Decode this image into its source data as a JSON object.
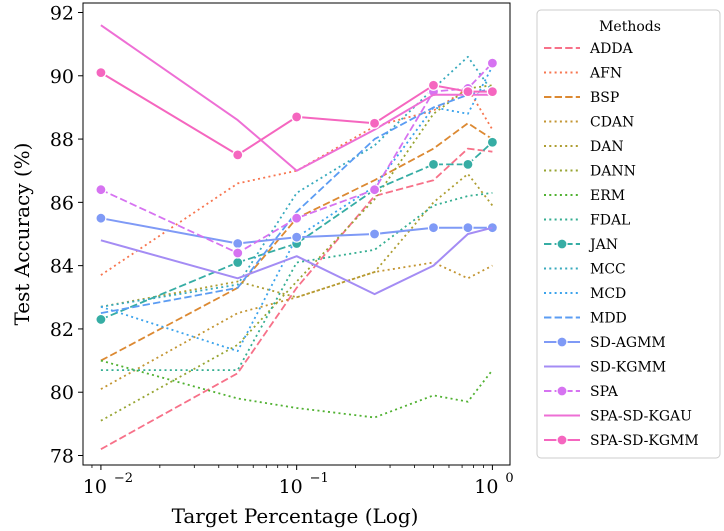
{
  "chart_data": {
    "type": "line",
    "xscale": "log",
    "xlabel": "Target Percentage (Log)",
    "ylabel": "Test Accuracy (%)",
    "xlim": [
      0.0081,
      1.23
    ],
    "ylim": [
      77.7,
      92.3
    ],
    "x": [
      0.01,
      0.05,
      0.1,
      0.25,
      0.5,
      0.75,
      1.0
    ],
    "xticks": [
      0.01,
      0.1,
      1.0
    ],
    "xtick_labels": [
      "10",
      "10",
      "10"
    ],
    "xtick_exponents": [
      "−2",
      "−1",
      "0"
    ],
    "yticks": [
      78,
      80,
      82,
      84,
      86,
      88,
      90,
      92
    ],
    "ytick_labels": [
      "78",
      "80",
      "82",
      "84",
      "86",
      "88",
      "90",
      "92"
    ],
    "grid": false,
    "legend": {
      "title": "Methods",
      "placement": "outside-right"
    },
    "series": [
      {
        "name": "ADDA",
        "color": "#f77189",
        "dash": "dashed",
        "marker": "none",
        "values": [
          78.2,
          80.6,
          83.3,
          86.2,
          86.7,
          87.7,
          87.6
        ]
      },
      {
        "name": "AFN",
        "color": "#f7754f",
        "dash": "dotted",
        "marker": "none",
        "values": [
          83.7,
          86.6,
          87.0,
          88.4,
          88.9,
          89.6,
          88.3
        ]
      },
      {
        "name": "BSP",
        "color": "#dc8932",
        "dash": "dashed",
        "marker": "none",
        "values": [
          81.0,
          83.3,
          85.5,
          86.7,
          87.7,
          88.5,
          88.0
        ]
      },
      {
        "name": "CDAN",
        "color": "#c39532",
        "dash": "dotted",
        "marker": "none",
        "values": [
          80.1,
          82.5,
          83.0,
          83.8,
          84.1,
          83.6,
          84.0
        ]
      },
      {
        "name": "DAN",
        "color": "#ae9d31",
        "dash": "dotted",
        "marker": "none",
        "values": [
          82.7,
          83.5,
          83.0,
          83.8,
          86.0,
          86.9,
          85.9
        ]
      },
      {
        "name": "DANN",
        "color": "#97a431",
        "dash": "dotted",
        "marker": "none",
        "values": [
          79.1,
          81.5,
          83.5,
          86.1,
          88.8,
          89.6,
          89.7
        ]
      },
      {
        "name": "ERM",
        "color": "#50b131",
        "dash": "dotted",
        "marker": "none",
        "values": [
          81.0,
          79.8,
          79.5,
          79.2,
          79.9,
          79.7,
          80.7
        ]
      },
      {
        "name": "FDAL",
        "color": "#34ae91",
        "dash": "dotted",
        "marker": "none",
        "values": [
          80.7,
          80.7,
          84.1,
          84.5,
          85.9,
          86.2,
          86.3
        ]
      },
      {
        "name": "JAN",
        "color": "#36ada4",
        "dash": "dashed",
        "marker": "circle",
        "values": [
          82.3,
          84.1,
          84.7,
          86.4,
          87.2,
          87.2,
          87.9
        ]
      },
      {
        "name": "MCC",
        "color": "#38aabd",
        "dash": "dotted",
        "marker": "none",
        "values": [
          82.7,
          83.4,
          86.3,
          87.8,
          89.6,
          90.6,
          89.5
        ]
      },
      {
        "name": "MCD",
        "color": "#3ba3ec",
        "dash": "dotted",
        "marker": "none",
        "values": [
          82.7,
          81.3,
          84.9,
          86.5,
          89.0,
          88.8,
          90.3
        ]
      },
      {
        "name": "MDD",
        "color": "#5b9cf3",
        "dash": "dashed",
        "marker": "none",
        "values": [
          82.5,
          83.3,
          85.7,
          88.0,
          89.0,
          89.4,
          89.6
        ]
      },
      {
        "name": "SD-AGMM",
        "color": "#7f9af6",
        "dash": "solid",
        "marker": "circle",
        "values": [
          85.5,
          84.7,
          84.9,
          85.0,
          85.2,
          85.2,
          85.2
        ]
      },
      {
        "name": "SD-KGMM",
        "color": "#a48cf4",
        "dash": "solid",
        "marker": "none",
        "values": [
          84.8,
          83.6,
          84.3,
          83.1,
          84.0,
          85.0,
          85.2
        ]
      },
      {
        "name": "SPA",
        "color": "#d673f1",
        "dash": "dashed",
        "marker": "circle",
        "values": [
          86.4,
          84.4,
          85.5,
          86.4,
          89.5,
          89.6,
          90.4
        ]
      },
      {
        "name": "SPA-SD-KGAU",
        "color": "#ee6fd5",
        "dash": "solid",
        "marker": "none",
        "values": [
          91.6,
          88.6,
          87.0,
          88.3,
          89.4,
          89.4,
          89.4
        ]
      },
      {
        "name": "SPA-SD-KGMM",
        "color": "#f566bf",
        "dash": "solid",
        "marker": "circle",
        "values": [
          90.1,
          87.5,
          88.7,
          88.5,
          89.7,
          89.5,
          89.5
        ]
      }
    ]
  }
}
